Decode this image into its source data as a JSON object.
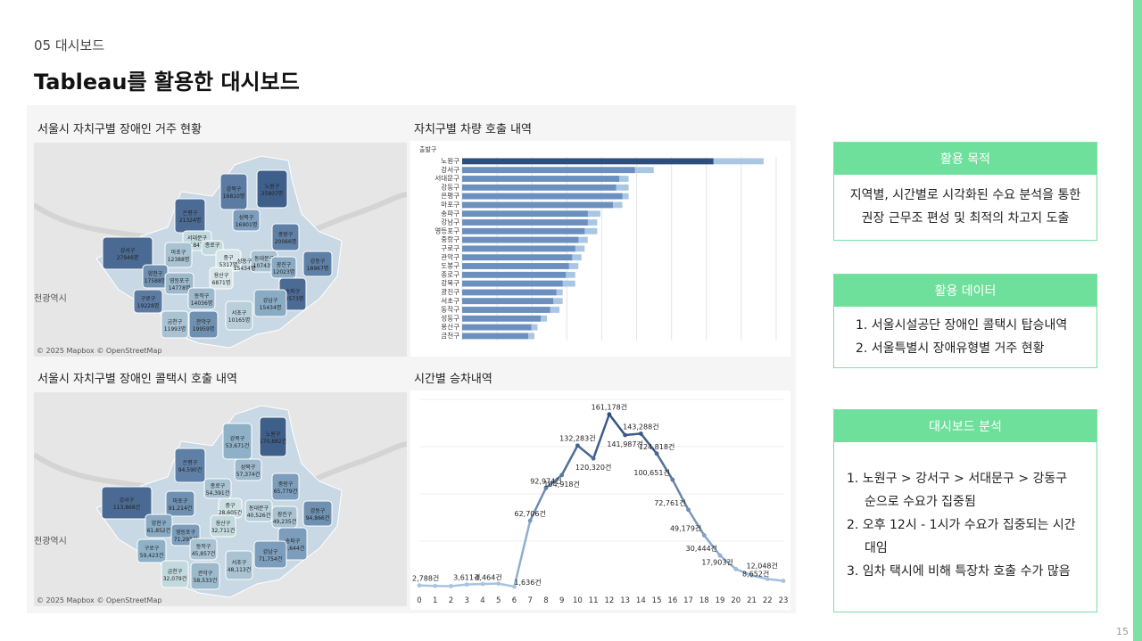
{
  "section": "05 대시보드",
  "title": "Tableau를 활용한 대시보드",
  "page_number": "15",
  "map1": {
    "title": "서울시 자치구별 장애인 거주 현황",
    "attribution": "© 2025 Mapbox  © OpenStreetMap",
    "city_label": "천광역시",
    "labels": [
      {
        "name": "강북구",
        "value": "16810명"
      },
      {
        "name": "노원구",
        "value": "25807명"
      },
      {
        "name": "은평구",
        "value": "21324명"
      },
      {
        "name": "성북구",
        "value": "16901명"
      },
      {
        "name": "서대문구",
        "value": "11847명"
      },
      {
        "name": "중랑구",
        "value": "20066명"
      },
      {
        "name": "강서구",
        "value": "27946명"
      },
      {
        "name": "마포구",
        "value": "12388명"
      },
      {
        "name": "종로구",
        "value": ""
      },
      {
        "name": "중구",
        "value": "5317명"
      },
      {
        "name": "동대문구",
        "value": "10743명"
      },
      {
        "name": "광진구",
        "value": "12023명"
      },
      {
        "name": "강동구",
        "value": "18967명"
      },
      {
        "name": "양천구",
        "value": "17588명"
      },
      {
        "name": "영등포구",
        "value": "14778명"
      },
      {
        "name": "용산구",
        "value": "6871명"
      },
      {
        "name": "구로구",
        "value": "19228명"
      },
      {
        "name": "동작구",
        "value": "14036명"
      },
      {
        "name": "성동구",
        "value": "15434명"
      },
      {
        "name": "송파구",
        "value": "20573명"
      },
      {
        "name": "강남구",
        "value": "15434명"
      },
      {
        "name": "서초구",
        "value": "10165명"
      },
      {
        "name": "금천구",
        "value": "11993명"
      },
      {
        "name": "관악구",
        "value": "19959명"
      }
    ]
  },
  "map2": {
    "title": "서울시 자치구별 장애인 콜택시 호출 내역",
    "attribution": "© 2025 Mapbox  © OpenStreetMap",
    "city_label": "천광역시",
    "labels": [
      {
        "name": "강북구",
        "value": "53,671건"
      },
      {
        "name": "노원구",
        "value": "170,882건"
      },
      {
        "name": "은평구",
        "value": "94,590건"
      },
      {
        "name": "성북구",
        "value": "57,374건"
      },
      {
        "name": "종로구",
        "value": "54,391건"
      },
      {
        "name": "중랑구",
        "value": "65,779건"
      },
      {
        "name": "강서구",
        "value": "113,868건"
      },
      {
        "name": "마포구",
        "value": "91,214건"
      },
      {
        "name": "중구",
        "value": "28,605건"
      },
      {
        "name": "동대문구",
        "value": "40,526건"
      },
      {
        "name": "광진구",
        "value": "49,235건"
      },
      {
        "name": "강동구",
        "value": "94,866건"
      },
      {
        "name": "양천구",
        "value": "61,852건"
      },
      {
        "name": "영등포구",
        "value": "71,293건"
      },
      {
        "name": "용산구",
        "value": "32,711건"
      },
      {
        "name": "구로구",
        "value": "59,423건"
      },
      {
        "name": "동작구",
        "value": "45,857건"
      },
      {
        "name": "성동구",
        "value": ""
      },
      {
        "name": "송파구",
        "value": "73,644건"
      },
      {
        "name": "강남구",
        "value": "71,754건"
      },
      {
        "name": "서초구",
        "value": "48,113건"
      },
      {
        "name": "금천구",
        "value": "32,079건"
      },
      {
        "name": "관악구",
        "value": "58,533건"
      }
    ]
  },
  "bar_panel_title": "자치구별 차량 호출 내역",
  "line_panel_title": "시간별 승차내역",
  "chart_data": [
    {
      "type": "bar",
      "title": "자치구별 차량 호출 내역",
      "header_label": "출발구",
      "categories": [
        "노원구",
        "강서구",
        "서대문구",
        "강동구",
        "은평구",
        "마포구",
        "송파구",
        "강남구",
        "영등포구",
        "중랑구",
        "구로구",
        "관악구",
        "도봉구",
        "종로구",
        "강북구",
        "광진구",
        "서초구",
        "동작구",
        "성동구",
        "용산구",
        "금천구"
      ],
      "series": [
        {
          "values": [
            0.8,
            0.55,
            0.5,
            0.49,
            0.51,
            0.48,
            0.4,
            0.4,
            0.39,
            0.37,
            0.36,
            0.35,
            0.34,
            0.33,
            0.32,
            0.3,
            0.29,
            0.28,
            0.25,
            0.22,
            0.21
          ]
        },
        {
          "values": [
            0.96,
            0.61,
            0.53,
            0.53,
            0.53,
            0.51,
            0.44,
            0.43,
            0.43,
            0.4,
            0.39,
            0.38,
            0.37,
            0.36,
            0.36,
            0.32,
            0.32,
            0.31,
            0.27,
            0.24,
            0.23
          ]
        }
      ],
      "colors": {
        "primary": "#2d4d7d",
        "secondary": "#a9c6e3",
        "mid": "#6b8fbf"
      }
    },
    {
      "type": "line",
      "title": "시간별 승차내역",
      "x": [
        0,
        1,
        2,
        3,
        4,
        5,
        6,
        7,
        8,
        9,
        10,
        11,
        12,
        13,
        14,
        15,
        16,
        17,
        18,
        19,
        20,
        21,
        22,
        23
      ],
      "x_labels": [
        "0",
        "1",
        "2",
        "3",
        "4",
        "5",
        "6",
        "7",
        "8",
        "9",
        "10",
        "11",
        "12",
        "13",
        "14",
        "15",
        "16",
        "17",
        "18",
        "19",
        "20",
        "21",
        "22",
        "23"
      ],
      "values": [
        2788,
        2300,
        2100,
        3611,
        4100,
        4464,
        1636,
        62706,
        92974,
        104918,
        132283,
        120320,
        161178,
        141987,
        143288,
        124818,
        100651,
        72761,
        49179,
        30444,
        17903,
        12048,
        8652,
        7000
      ],
      "data_labels": [
        "2,788건",
        "",
        "",
        "3,611건",
        "",
        "4,464건",
        "1,636건",
        "62,706건",
        "92,974건",
        "104,918건",
        "132,283건",
        "120,320건",
        "161,178건",
        "141,987건",
        "143,288건",
        "124,818건",
        "100,651건",
        "72,761건",
        "49,179건",
        "30,444건",
        "17,903건",
        "12,048건",
        "8,652건",
        ""
      ],
      "ylim": [
        0,
        175000
      ],
      "grid": true,
      "colors": {
        "low": "#a9c6e3",
        "high": "#2d4d7d"
      }
    }
  ],
  "cards": {
    "purpose": {
      "title": "활용 목적",
      "lines": [
        "지역별, 시간별로 시각화된 수요 분석을 통한",
        "권장 근무조 편성 및 최적의 차고지 도출"
      ]
    },
    "data": {
      "title": "활용 데이터",
      "items": [
        "1. 서울시설공단 장애인 콜택시 탑승내역",
        "2. 서울특별시 장애유형별 거주 현황"
      ]
    },
    "analysis": {
      "title": "대시보드 분석",
      "items": [
        "1. 노원구 > 강서구 > 서대문구 > 강동구",
        "순으로 수요가 집중됨",
        "2. 오후 12시 - 1시가 수요가 집중되는 시간",
        "대임",
        "3. 임차 택시에 비해 특장차 호출 수가 많음"
      ]
    }
  }
}
